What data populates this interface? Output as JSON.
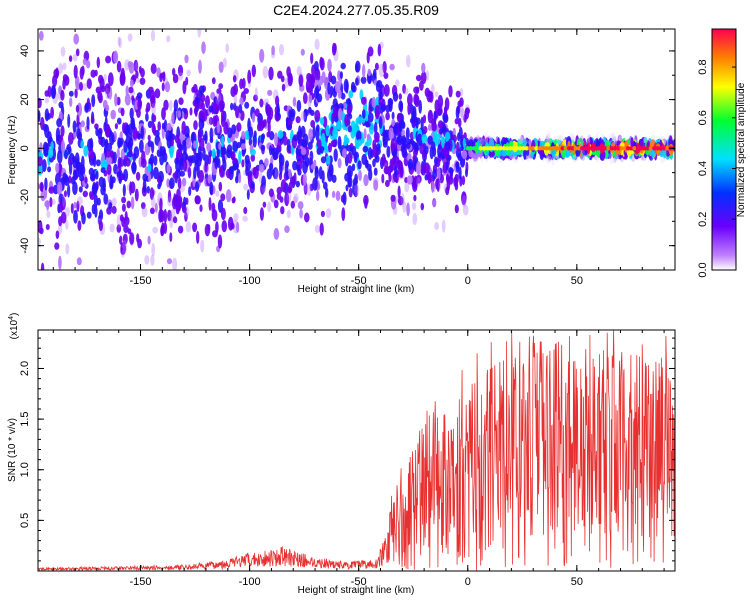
{
  "title": "C2E4.2024.277.05.35.R09",
  "colors": {
    "snr_line": "#e83030",
    "axis": "#000000"
  },
  "chart_data": [
    {
      "type": "heatmap",
      "name": "spectrogram",
      "xlabel": "Height of straight line (km)",
      "ylabel": "Frequency (Hz)",
      "xlim": [
        -197,
        95
      ],
      "ylim": [
        -50,
        49
      ],
      "x_ticks": [
        -150,
        -100,
        -50,
        0,
        50
      ],
      "x_tick_labels": [
        "-150",
        "-100",
        "-50",
        "0",
        "50"
      ],
      "y_ticks": [
        -40,
        -20,
        0,
        20,
        40
      ],
      "y_tick_labels": [
        "-40",
        "-20",
        "0",
        "20",
        "40"
      ],
      "colorbar": {
        "label": "Normalized spectral amplitude",
        "range": [
          0,
          0.95
        ],
        "ticks": [
          0.0,
          0.2,
          0.4,
          0.6,
          0.8
        ],
        "tick_labels": [
          "0.0",
          "0.2",
          "0.4",
          "0.6",
          "0.8"
        ],
        "colormap": [
          "#ffffff",
          "#a020f0",
          "#3000ff",
          "#00d8ff",
          "#00ff40",
          "#ffff00",
          "#ff8000",
          "#ff0040"
        ]
      },
      "band_center_hz": [
        {
          "x": -190,
          "y": -2
        },
        {
          "x": -150,
          "y": -2
        },
        {
          "x": -110,
          "y": 0
        },
        {
          "x": -80,
          "y": 2
        },
        {
          "x": -55,
          "y": 8
        },
        {
          "x": -40,
          "y": 8
        },
        {
          "x": -20,
          "y": 3
        },
        {
          "x": 0,
          "y": 0
        },
        {
          "x": 95,
          "y": 0
        }
      ]
    },
    {
      "type": "line",
      "name": "snr",
      "xlabel": "Height of straight line (km)",
      "ylabel": "SNR (10 * v/v)",
      "scale_label": "(x10",
      "scale_exponent": "4",
      "xlim": [
        -197,
        95
      ],
      "ylim": [
        0,
        23800
      ],
      "x_ticks": [
        -150,
        -100,
        -50,
        0,
        50
      ],
      "x_tick_labels": [
        "-150",
        "-100",
        "-50",
        "0",
        "50"
      ],
      "y_ticks": [
        5000,
        10000,
        15000,
        20000
      ],
      "y_tick_labels": [
        "0.5",
        "1.0",
        "1.5",
        "2.0"
      ],
      "envelope": [
        {
          "x": -197,
          "y": 300
        },
        {
          "x": -130,
          "y": 600
        },
        {
          "x": -115,
          "y": 1000
        },
        {
          "x": -100,
          "y": 1800
        },
        {
          "x": -85,
          "y": 2400
        },
        {
          "x": -70,
          "y": 1400
        },
        {
          "x": -55,
          "y": 900
        },
        {
          "x": -42,
          "y": 1200
        },
        {
          "x": -35,
          "y": 5000
        },
        {
          "x": -25,
          "y": 9000
        },
        {
          "x": -10,
          "y": 12000
        },
        {
          "x": 10,
          "y": 15000
        },
        {
          "x": 30,
          "y": 17000
        },
        {
          "x": 60,
          "y": 16500
        },
        {
          "x": 95,
          "y": 15000
        }
      ]
    }
  ]
}
